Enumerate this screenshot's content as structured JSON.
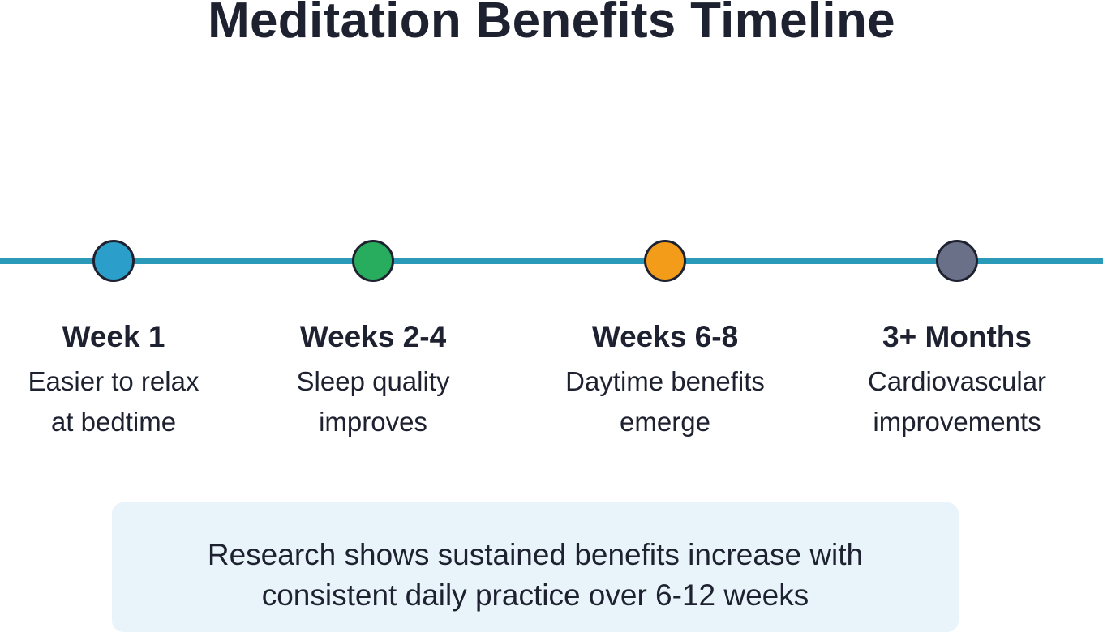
{
  "title": "Meditation Benefits Timeline",
  "milestones": [
    {
      "label": "Week 1",
      "desc_line1": "Easier to relax",
      "desc_line2": "at bedtime",
      "color": "#2b9ec9"
    },
    {
      "label": "Weeks 2-4",
      "desc_line1": "Sleep quality",
      "desc_line2": "improves",
      "color": "#27ad5d"
    },
    {
      "label": "Weeks 6-8",
      "desc_line1": "Daytime benefits",
      "desc_line2": "emerge",
      "color": "#f39c1a"
    },
    {
      "label": "3+ Months",
      "desc_line1": "Cardiovascular",
      "desc_line2": "improvements",
      "color": "#6b7089"
    }
  ],
  "timeline_color": "#2b9ab8",
  "note": {
    "line1": "Research shows sustained benefits increase with",
    "line2": "consistent daily practice over 6-12 weeks"
  }
}
